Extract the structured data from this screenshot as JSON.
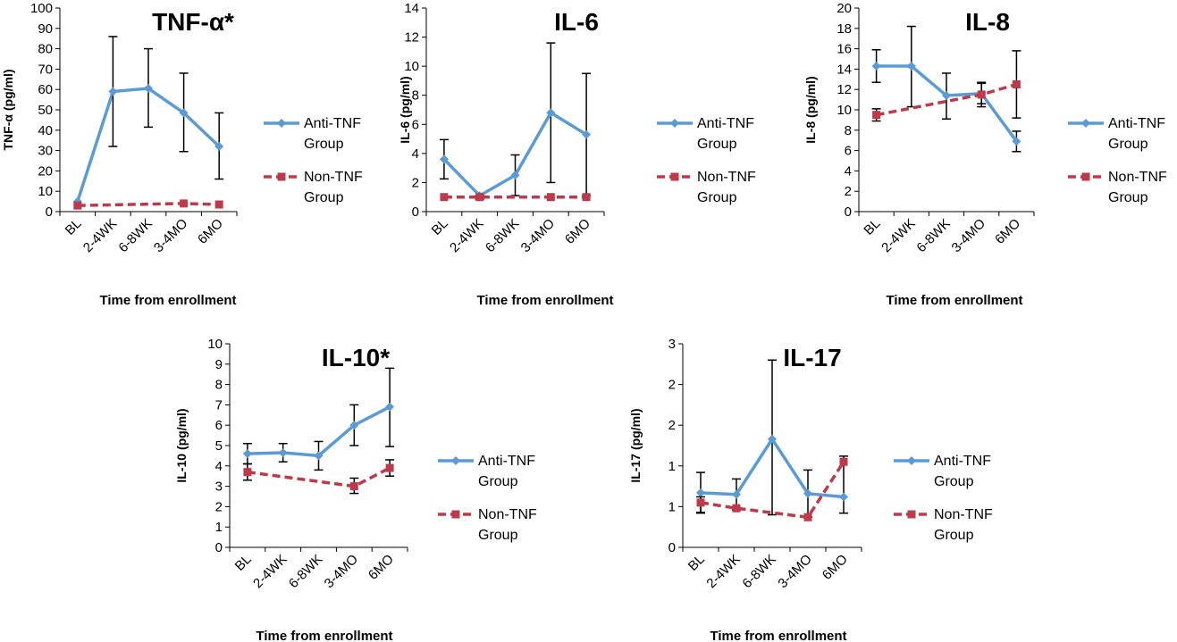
{
  "legend": {
    "anti_label": [
      "Anti-TNF",
      "Group"
    ],
    "non_label": [
      "Non-TNF",
      "Group"
    ]
  },
  "colors": {
    "anti": "#5b9bd5",
    "non": "#be3a4a",
    "error_bars": "#000000",
    "axis": "#000000"
  },
  "chart_data": [
    {
      "type": "line",
      "title": "TNF-α*",
      "ylabel": "TNF-α (pg/ml)",
      "xlabel": "Time from enrollment",
      "categories": [
        "BL",
        "2-4WK",
        "6-8WK",
        "3-4MO",
        "6MO"
      ],
      "ylim": [
        0,
        100
      ],
      "yticks": [
        0,
        10,
        20,
        30,
        40,
        50,
        60,
        70,
        80,
        90,
        100
      ],
      "series": [
        {
          "name": "Anti-TNF Group",
          "values": [
            5,
            59,
            60.5,
            48.5,
            32
          ],
          "err_high": [
            null,
            86,
            80,
            68,
            48.5
          ],
          "err_low": [
            null,
            32,
            41.5,
            29.5,
            16
          ]
        },
        {
          "name": "Non-TNF Group",
          "values": [
            3,
            null,
            null,
            4,
            3.5
          ],
          "err_high": [
            null,
            null,
            null,
            null,
            null
          ],
          "err_low": [
            null,
            null,
            null,
            null,
            null
          ]
        }
      ]
    },
    {
      "type": "line",
      "title": "IL-6",
      "ylabel": "IL-6 (pg/ml)",
      "xlabel": "Time from enrollment",
      "categories": [
        "BL",
        "2-4WK",
        "6-8WK",
        "3-4MO",
        "6MO"
      ],
      "ylim": [
        0,
        14
      ],
      "yticks": [
        0,
        2,
        4,
        6,
        8,
        10,
        12,
        14
      ],
      "series": [
        {
          "name": "Anti-TNF Group",
          "values": [
            3.6,
            1.1,
            2.5,
            6.8,
            5.3
          ],
          "err_high": [
            4.95,
            null,
            3.9,
            11.6,
            9.5
          ],
          "err_low": [
            2.25,
            null,
            1.1,
            2.0,
            1.1
          ]
        },
        {
          "name": "Non-TNF Group",
          "values": [
            1.0,
            1.0,
            null,
            1.0,
            1.0
          ],
          "err_high": [
            null,
            1.1,
            null,
            null,
            null
          ],
          "err_low": [
            null,
            0.85,
            null,
            null,
            null
          ]
        }
      ]
    },
    {
      "type": "line",
      "title": "IL-8",
      "ylabel": "IL-8 (pg/ml)",
      "xlabel": "Time from enrollment",
      "categories": [
        "BL",
        "2-4WK",
        "6-8WK",
        "3-4MO",
        "6MO"
      ],
      "ylim": [
        0,
        20
      ],
      "yticks": [
        0,
        2,
        4,
        6,
        8,
        10,
        12,
        14,
        16,
        18,
        20
      ],
      "series": [
        {
          "name": "Anti-TNF Group",
          "values": [
            14.3,
            14.3,
            11.4,
            11.6,
            6.9
          ],
          "err_high": [
            15.9,
            18.2,
            13.6,
            12.6,
            7.9
          ],
          "err_low": [
            12.7,
            10.3,
            9.1,
            10.6,
            5.9
          ]
        },
        {
          "name": "Non-TNF Group",
          "values": [
            9.5,
            null,
            null,
            11.5,
            12.5
          ],
          "err_high": [
            10.1,
            null,
            null,
            12.7,
            15.8
          ],
          "err_low": [
            8.9,
            null,
            null,
            10.3,
            9.2
          ]
        }
      ]
    },
    {
      "type": "line",
      "title": "IL-10*",
      "ylabel": "IL-10 (pg/ml)",
      "xlabel": "Time from enrollment",
      "categories": [
        "BL",
        "2-4WK",
        "6-8WK",
        "3-4MO",
        "6MO"
      ],
      "ylim": [
        0,
        10
      ],
      "yticks": [
        0,
        1,
        2,
        3,
        4,
        5,
        6,
        7,
        8,
        9,
        10
      ],
      "series": [
        {
          "name": "Anti-TNF Group",
          "values": [
            4.6,
            4.65,
            4.5,
            6.0,
            6.9
          ],
          "err_high": [
            5.1,
            5.1,
            5.2,
            7.0,
            8.8
          ],
          "err_low": [
            4.1,
            4.2,
            3.8,
            5.0,
            4.95
          ]
        },
        {
          "name": "Non-TNF Group",
          "values": [
            3.7,
            null,
            null,
            3.0,
            3.9
          ],
          "err_high": [
            4.1,
            null,
            null,
            3.4,
            4.3
          ],
          "err_low": [
            3.3,
            null,
            null,
            2.65,
            3.5
          ]
        }
      ]
    },
    {
      "type": "line",
      "title": "IL-17",
      "ylabel": "IL-17 (pg/ml)",
      "xlabel": "Time from enrollment",
      "categories": [
        "BL",
        "2-4WK",
        "6-8WK",
        "3-4MO",
        "6MO"
      ],
      "ylim": [
        0,
        2.5
      ],
      "yticks": [
        0,
        0.5,
        1,
        1.5,
        2,
        2.5
      ],
      "ytick_labels": [
        "0",
        "1",
        "1",
        "2",
        "2",
        "3"
      ],
      "series": [
        {
          "name": "Anti-TNF Group",
          "values": [
            0.67,
            0.65,
            1.33,
            0.66,
            0.62
          ],
          "err_high": [
            0.92,
            0.84,
            2.3,
            0.95,
            1.12
          ],
          "err_low": [
            0.42,
            0.46,
            0.4,
            0.37,
            0.42
          ]
        },
        {
          "name": "Non-TNF Group",
          "values": [
            0.55,
            0.48,
            null,
            0.37,
            1.05
          ],
          "err_high": [
            0.62,
            null,
            null,
            null,
            null
          ],
          "err_low": [
            0.43,
            null,
            null,
            null,
            null
          ]
        }
      ]
    }
  ]
}
